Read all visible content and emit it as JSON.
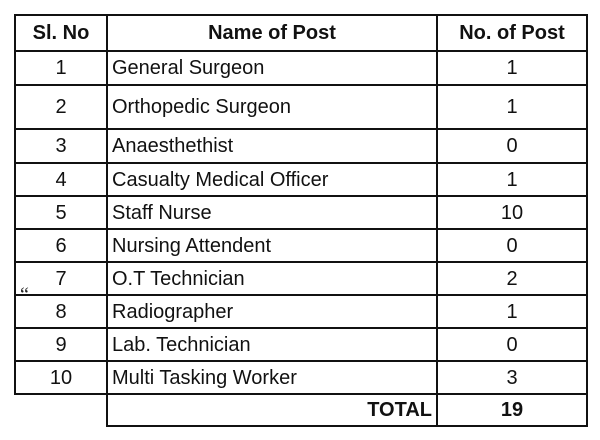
{
  "table": {
    "headers": [
      "Sl. No",
      "Name of Post",
      "No. of Post"
    ],
    "rows": [
      {
        "sl": "1",
        "name": "General Surgeon",
        "count": "1"
      },
      {
        "sl": "2",
        "name": "Orthopedic Surgeon",
        "count": "1"
      },
      {
        "sl": "3",
        "name": "Anaesthethist",
        "count": "0"
      },
      {
        "sl": "4",
        "name": "Casualty Medical Officer",
        "count": "1"
      },
      {
        "sl": "5",
        "name": "Staff Nurse",
        "count": "10"
      },
      {
        "sl": "6",
        "name": "Nursing Attendent",
        "count": "0"
      },
      {
        "sl": "7",
        "name": "O.T Technician",
        "count": "2"
      },
      {
        "sl": "8",
        "name": "Radiographer",
        "count": "1"
      },
      {
        "sl": "9",
        "name": "Lab. Technician",
        "count": "0"
      },
      {
        "sl": "10",
        "name": "Multi Tasking Worker",
        "count": "3"
      }
    ],
    "total_label": "TOTAL",
    "total_value": "19"
  },
  "stray_mark": "“"
}
